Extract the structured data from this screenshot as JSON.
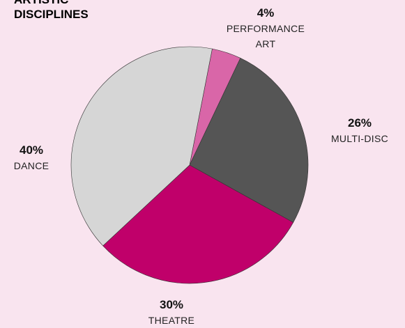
{
  "chart_data": {
    "type": "pie",
    "title": "ARTISTIC DISCIPLINES",
    "categories": [
      "PERFORMANCE ART",
      "MULTI-DISC",
      "THEATRE",
      "DANCE"
    ],
    "values": [
      4,
      26,
      30,
      40
    ],
    "value_labels": [
      "4%",
      "26%",
      "30%",
      "40%"
    ],
    "colors": [
      "#d966a8",
      "#555555",
      "#c0006a",
      "#d6d6d6"
    ]
  }
}
